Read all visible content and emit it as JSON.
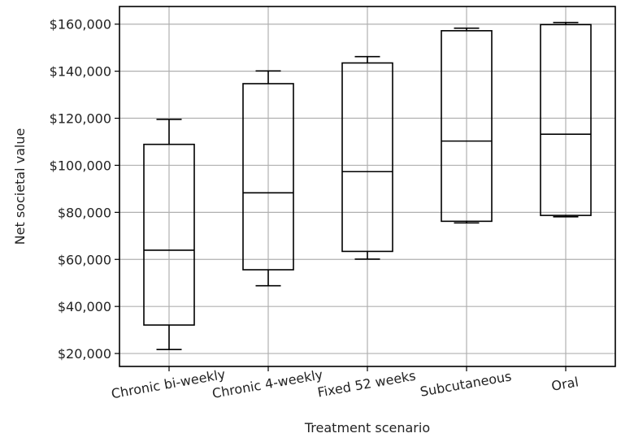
{
  "chart_data": {
    "type": "box",
    "title": "",
    "xlabel": "Treatment scenario",
    "ylabel": "Net societal value",
    "ylim": [
      14500,
      167500
    ],
    "grid": true,
    "y_ticks": [
      {
        "value": 20000,
        "label": "$20,000"
      },
      {
        "value": 40000,
        "label": "$40,000"
      },
      {
        "value": 60000,
        "label": "$60,000"
      },
      {
        "value": 80000,
        "label": "$80,000"
      },
      {
        "value": 100000,
        "label": "$100,000"
      },
      {
        "value": 120000,
        "label": "$120,000"
      },
      {
        "value": 140000,
        "label": "$140,000"
      },
      {
        "value": 160000,
        "label": "$160,000"
      }
    ],
    "categories": [
      "Chronic bi-weekly",
      "Chronic 4-weekly",
      "Fixed 52 weeks",
      "Subcutaneous",
      "Oral"
    ],
    "boxes": [
      {
        "whislo": 21700,
        "q1": 32100,
        "med": 63900,
        "q3": 108900,
        "whishi": 119500
      },
      {
        "whislo": 48800,
        "q1": 55600,
        "med": 88300,
        "q3": 134700,
        "whishi": 140100
      },
      {
        "whislo": 60100,
        "q1": 63400,
        "med": 97300,
        "q3": 143500,
        "whishi": 146200
      },
      {
        "whislo": 75500,
        "q1": 76200,
        "med": 110300,
        "q3": 157200,
        "whishi": 158300
      },
      {
        "whislo": 78100,
        "q1": 78700,
        "med": 113200,
        "q3": 159800,
        "whishi": 160700
      }
    ]
  }
}
